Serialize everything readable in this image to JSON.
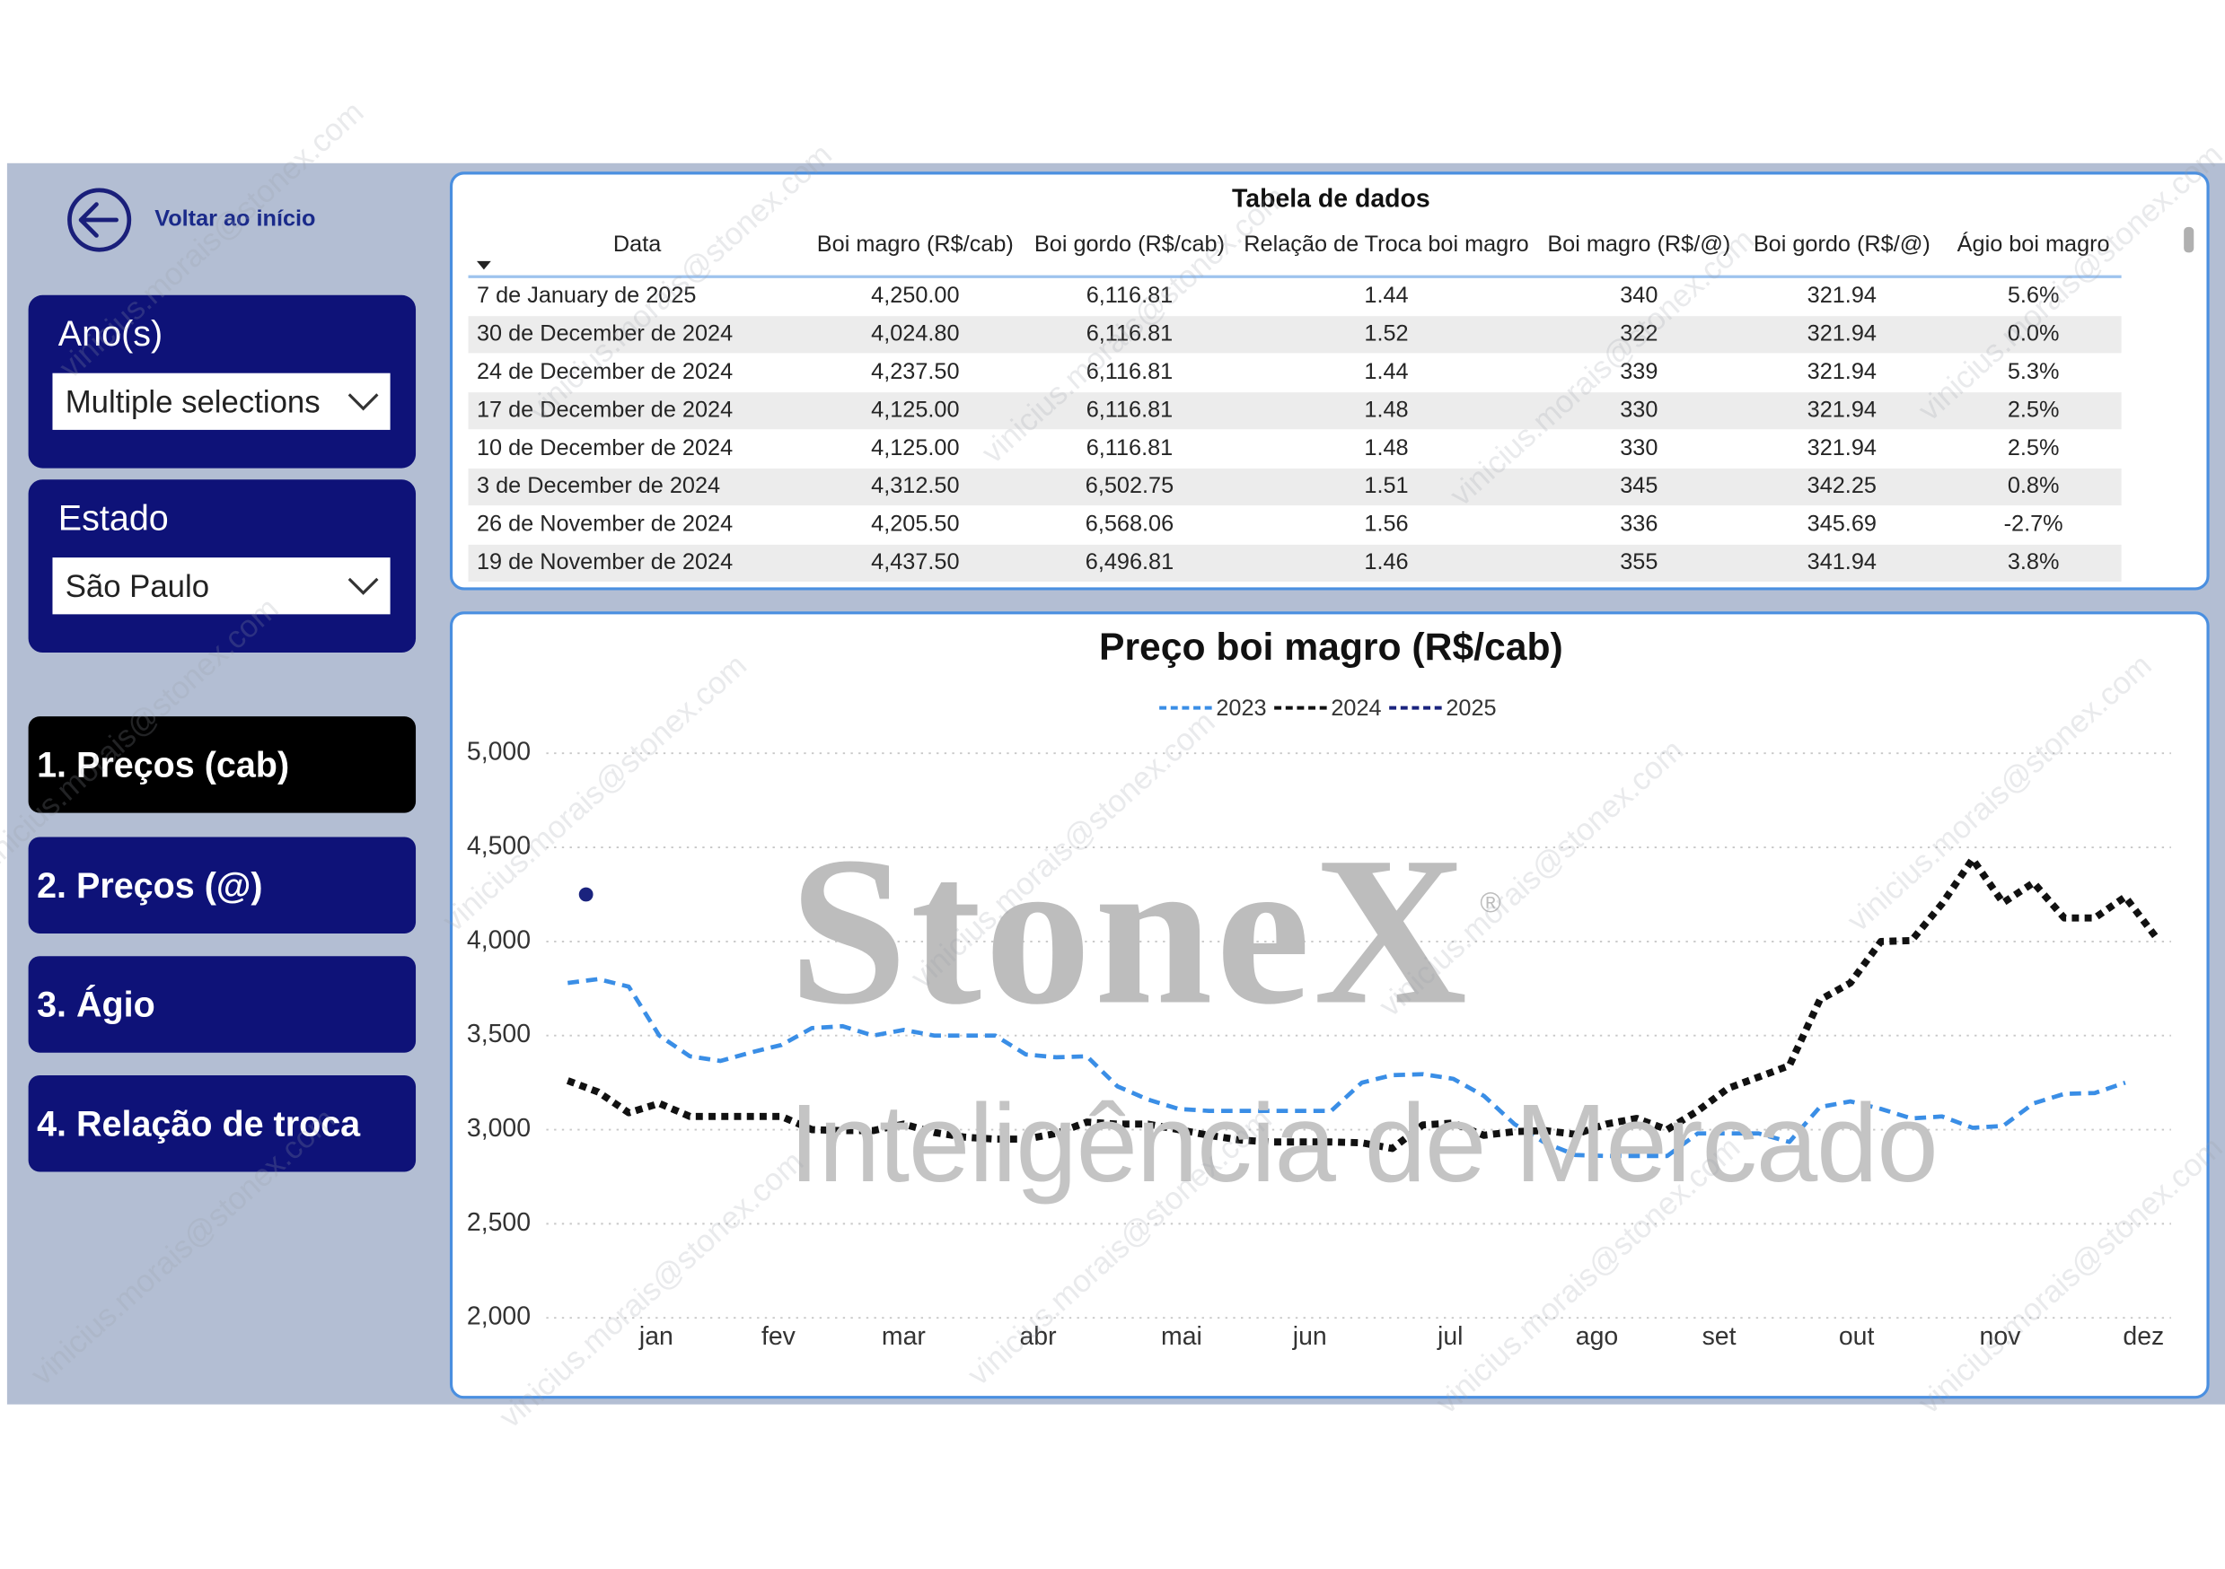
{
  "back_button": "Voltar ao início",
  "filters": [
    {
      "label": "Ano(s)",
      "value": "Multiple selections"
    },
    {
      "label": "Estado",
      "value": "São Paulo"
    }
  ],
  "nav": [
    "1. Preços (cab)",
    "2. Preços (@)",
    "3. Ágio",
    "4. Relação de troca"
  ],
  "table": {
    "title": "Tabela de dados",
    "columns": [
      "Data",
      "Boi magro (R$/cab)",
      "Boi gordo (R$/cab)",
      "Relação de Troca boi magro",
      "Boi magro (R$/@)",
      "Boi gordo (R$/@)",
      "Ágio boi magro"
    ],
    "rows": [
      [
        "7 de January de 2025",
        "4,250.00",
        "6,116.81",
        "1.44",
        "340",
        "321.94",
        "5.6%"
      ],
      [
        "30 de December de 2024",
        "4,024.80",
        "6,116.81",
        "1.52",
        "322",
        "321.94",
        "0.0%"
      ],
      [
        "24 de December de 2024",
        "4,237.50",
        "6,116.81",
        "1.44",
        "339",
        "321.94",
        "5.3%"
      ],
      [
        "17 de December de 2024",
        "4,125.00",
        "6,116.81",
        "1.48",
        "330",
        "321.94",
        "2.5%"
      ],
      [
        "10 de December de 2024",
        "4,125.00",
        "6,116.81",
        "1.48",
        "330",
        "321.94",
        "2.5%"
      ],
      [
        "3 de December de 2024",
        "4,312.50",
        "6,502.75",
        "1.51",
        "345",
        "342.25",
        "0.8%"
      ],
      [
        "26 de November de 2024",
        "4,205.50",
        "6,568.06",
        "1.56",
        "336",
        "345.69",
        "-2.7%"
      ],
      [
        "19 de November de 2024",
        "4,437.50",
        "6,496.81",
        "1.46",
        "355",
        "341.94",
        "3.8%"
      ]
    ]
  },
  "chart_data": {
    "type": "line",
    "title": "Preço boi magro (R$/cab)",
    "xlim": [
      -0.7,
      52.5
    ],
    "xticks": [
      {
        "value": 2.9,
        "label": "jan"
      },
      {
        "value": 6.9,
        "label": "fev"
      },
      {
        "value": 11.0,
        "label": "mar"
      },
      {
        "value": 15.4,
        "label": "abr"
      },
      {
        "value": 20.1,
        "label": "mai"
      },
      {
        "value": 24.3,
        "label": "jun"
      },
      {
        "value": 28.9,
        "label": "jul"
      },
      {
        "value": 33.7,
        "label": "ago"
      },
      {
        "value": 37.7,
        "label": "set"
      },
      {
        "value": 42.2,
        "label": "out"
      },
      {
        "value": 46.9,
        "label": "nov"
      },
      {
        "value": 51.6,
        "label": "dez"
      }
    ],
    "ylim": [
      2000,
      5000
    ],
    "yticks": [
      {
        "value": 2000,
        "label": "2,000"
      },
      {
        "value": 2500,
        "label": "2,500"
      },
      {
        "value": 3000,
        "label": "3,000"
      },
      {
        "value": 3500,
        "label": "3,500"
      },
      {
        "value": 4000,
        "label": "4,000"
      },
      {
        "value": 4500,
        "label": "4,500"
      },
      {
        "value": 5000,
        "label": "5,000"
      }
    ],
    "grid": true,
    "legend": "top",
    "series": [
      {
        "name": "2023",
        "color": "#3a8ee6",
        "x": [
          0,
          1,
          2,
          3,
          4,
          5,
          6,
          7,
          8,
          9,
          10,
          11,
          12,
          13,
          14,
          15,
          16,
          17,
          18,
          19,
          20,
          21,
          22,
          23,
          24,
          25,
          26,
          27,
          28,
          29,
          30,
          31,
          32,
          33,
          34,
          35,
          36,
          37,
          38,
          39,
          40,
          41,
          42,
          43,
          44,
          45,
          46,
          47,
          48,
          49,
          50,
          51
        ],
        "values": [
          3780,
          3800,
          3760,
          3500,
          3390,
          3365,
          3410,
          3450,
          3540,
          3550,
          3500,
          3530,
          3500,
          3500,
          3500,
          3400,
          3385,
          3390,
          3230,
          3160,
          3110,
          3100,
          3100,
          3100,
          3100,
          3100,
          3250,
          3290,
          3295,
          3270,
          3180,
          3030,
          2930,
          2865,
          2860,
          2860,
          2860,
          2980,
          2980,
          2980,
          2935,
          3120,
          3150,
          3110,
          3060,
          3070,
          3010,
          3020,
          3140,
          3190,
          3195,
          3250
        ]
      },
      {
        "name": "2024",
        "color": "#111111",
        "x": [
          0,
          1,
          2,
          3,
          4,
          5,
          6,
          7,
          8,
          9,
          10,
          11,
          12,
          13,
          14,
          15,
          16,
          17,
          18,
          19,
          20,
          21,
          22,
          23,
          24,
          25,
          26,
          27,
          28,
          29,
          30,
          31,
          32,
          33,
          34,
          35,
          36,
          37,
          38,
          39,
          40,
          41,
          42,
          43,
          44,
          45,
          46,
          47,
          48,
          49,
          50,
          51,
          52
        ],
        "values": [
          3260,
          3200,
          3090,
          3140,
          3070,
          3070,
          3070,
          3070,
          3000,
          2995,
          2995,
          3030,
          2985,
          2960,
          2950,
          2950,
          2980,
          3040,
          3030,
          3030,
          3000,
          2970,
          2945,
          2935,
          2935,
          2935,
          2930,
          2900,
          3025,
          3035,
          2970,
          2990,
          2995,
          2975,
          3030,
          3060,
          3000,
          3100,
          3220,
          3280,
          3340,
          3690,
          3780,
          4000,
          4005,
          4200,
          4437.5,
          4205.5,
          4312.5,
          4125,
          4125,
          4237.5,
          4024.8
        ]
      },
      {
        "name": "2025",
        "color": "#1a237e",
        "x": [
          0.6
        ],
        "values": [
          4250
        ]
      }
    ]
  },
  "watermark": {
    "brand": "StoneX",
    "registered": "®",
    "tagline": "Inteligência de Mercado",
    "user": "vinicius.morais@stonex.com"
  }
}
